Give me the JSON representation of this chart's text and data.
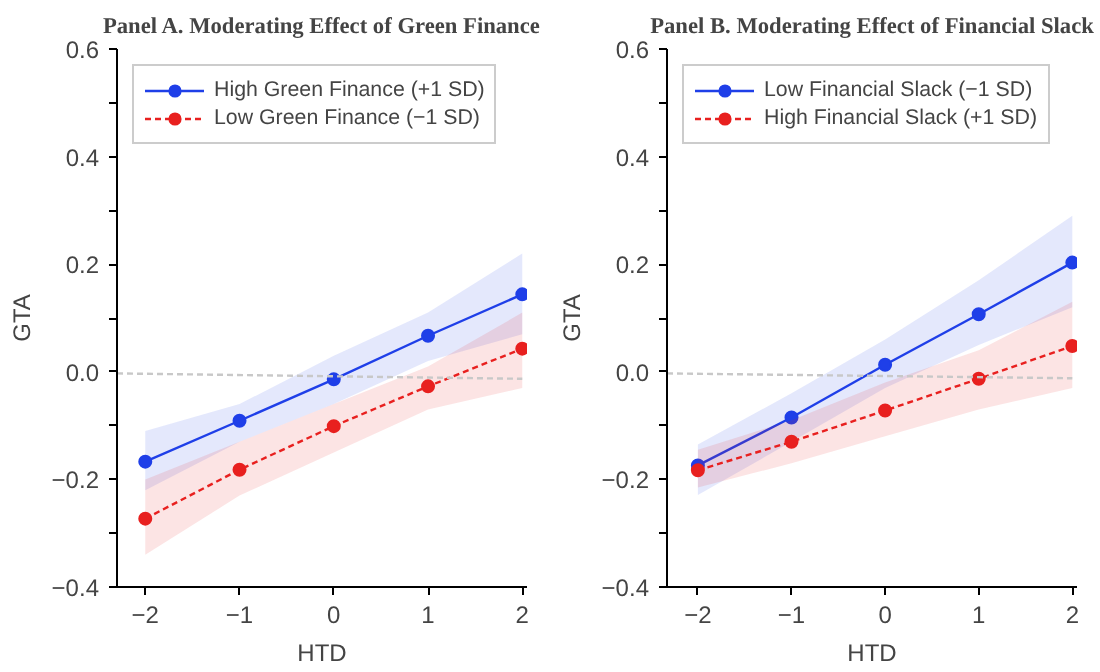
{
  "chart_data": [
    {
      "type": "line",
      "title": "Panel A. Moderating Effect of Green Finance",
      "xlabel": "HTD",
      "ylabel": "GTA",
      "xlim": [
        -2.3,
        2.05
      ],
      "xticks": [
        -2,
        -1,
        0,
        1,
        2
      ],
      "ylim": [
        -0.4,
        0.6
      ],
      "yticks": [
        {
          "value": -0.4,
          "label": "−0.4"
        },
        {
          "value": -0.3,
          "label": null
        },
        {
          "value": -0.2,
          "label": "−0.2"
        },
        {
          "value": -0.1,
          "label": null
        },
        {
          "value": 0,
          "label": "0.0"
        },
        {
          "value": 0.1,
          "label": null
        },
        0.2,
        {
          "value": 0.3,
          "label": null
        },
        0.4,
        {
          "value": 0.5,
          "label": null
        },
        0.6
      ],
      "grid": false,
      "legend": "top left",
      "series": [
        {
          "name": "High Green Finance (+1 SD)",
          "color": "#1f3fe8",
          "x": [
            -2,
            -1,
            0,
            1,
            2
          ],
          "values": [
            -0.167,
            -0.091,
            -0.014,
            0.067,
            0.144
          ],
          "lower": [
            -0.22,
            -0.13,
            -0.06,
            0.02,
            0.07
          ],
          "upper": [
            -0.11,
            -0.06,
            0.03,
            0.11,
            0.22
          ],
          "marker": "circle",
          "line_style": "solid"
        },
        {
          "name": "Low Green Finance (−1 SD)",
          "color": "#e8201f",
          "x": [
            -2,
            -1,
            0,
            1,
            2
          ],
          "values": [
            -0.273,
            -0.182,
            -0.101,
            -0.027,
            0.043
          ],
          "lower": [
            -0.34,
            -0.23,
            -0.15,
            -0.07,
            -0.03
          ],
          "upper": [
            -0.2,
            -0.13,
            -0.06,
            0.01,
            0.11
          ],
          "marker": "circle",
          "line_style": "dashed"
        },
        {
          "color": "#c8c8c8",
          "x": [
            -2.3,
            2
          ],
          "values": [
            -0.003,
            -0.013
          ],
          "marker": "none",
          "line_style": "dashed"
        }
      ]
    },
    {
      "type": "line",
      "title": "Panel B. Moderating Effect of Financial Slack",
      "xlabel": "HTD",
      "ylabel": "GTA",
      "xlim": [
        -2.33,
        2.05
      ],
      "xticks": [
        -2,
        -1,
        0,
        1,
        2
      ],
      "ylim": [
        -0.4,
        0.6
      ],
      "yticks": [
        {
          "value": -0.4,
          "label": "−0.4"
        },
        {
          "value": -0.3,
          "label": null
        },
        {
          "value": -0.2,
          "label": "−0.2"
        },
        {
          "value": -0.1,
          "label": null
        },
        {
          "value": 0,
          "label": "0.0"
        },
        {
          "value": 0.1,
          "label": null
        },
        0.2,
        {
          "value": 0.3,
          "label": null
        },
        0.4,
        {
          "value": 0.5,
          "label": null
        },
        0.6
      ],
      "grid": false,
      "legend": "top left",
      "series": [
        {
          "name": "Low Financial Slack (−1 SD)",
          "color": "#1f3fe8",
          "x": [
            -2,
            -1,
            0,
            1,
            2
          ],
          "values": [
            -0.174,
            -0.085,
            0.013,
            0.107,
            0.203
          ],
          "lower": [
            -0.229,
            -0.13,
            -0.03,
            0.05,
            0.12
          ],
          "upper": [
            -0.135,
            -0.04,
            0.06,
            0.17,
            0.29
          ],
          "marker": "circle",
          "line_style": "solid"
        },
        {
          "name": "High Financial Slack (+1 SD)",
          "color": "#e8201f",
          "x": [
            -2,
            -1,
            0,
            1,
            2
          ],
          "values": [
            -0.183,
            -0.13,
            -0.072,
            -0.013,
            0.048
          ],
          "lower": [
            -0.215,
            -0.17,
            -0.12,
            -0.07,
            -0.03
          ],
          "upper": [
            -0.145,
            -0.09,
            -0.02,
            0.04,
            0.13
          ],
          "marker": "circle",
          "line_style": "dashed"
        },
        {
          "color": "#c8c8c8",
          "x": [
            -2.33,
            2
          ],
          "values": [
            -0.003,
            -0.012
          ],
          "marker": "none",
          "line_style": "dashed"
        }
      ]
    }
  ]
}
